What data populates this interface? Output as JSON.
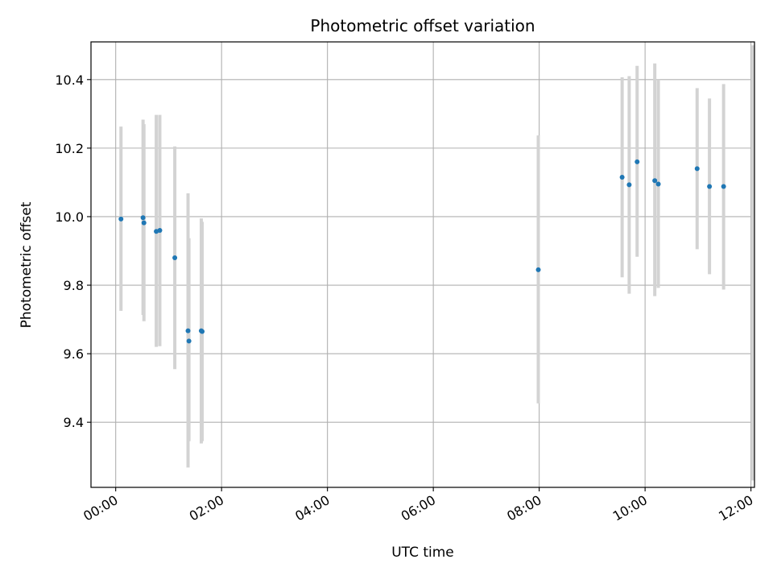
{
  "chart_data": {
    "type": "scatter",
    "title": "Photometric offset variation",
    "xlabel": "UTC time",
    "ylabel": "Photometric offset",
    "x_ticks": [
      "00:00",
      "02:00",
      "04:00",
      "06:00",
      "08:00",
      "10:00",
      "12:00"
    ],
    "y_ticks": [
      9.4,
      9.6,
      9.8,
      10.0,
      10.2,
      10.4
    ],
    "xlim": [
      "23:32",
      "12:04"
    ],
    "ylim": [
      9.21,
      10.51
    ],
    "grid": true,
    "errorbar_color": "#d3d3d3",
    "point_color": "#1f77b4",
    "points": [
      {
        "x": "00:06",
        "y": 9.993,
        "ylo": 9.725,
        "yhi": 10.263
      },
      {
        "x": "00:31",
        "y": 9.997,
        "ylo": 9.713,
        "yhi": 10.283
      },
      {
        "x": "00:32",
        "y": 9.982,
        "ylo": 9.695,
        "yhi": 10.27
      },
      {
        "x": "00:46",
        "y": 9.957,
        "ylo": 9.62,
        "yhi": 10.297
      },
      {
        "x": "00:50",
        "y": 9.96,
        "ylo": 9.622,
        "yhi": 10.297
      },
      {
        "x": "01:07",
        "y": 9.88,
        "ylo": 9.555,
        "yhi": 10.205
      },
      {
        "x": "01:22",
        "y": 9.667,
        "ylo": 9.268,
        "yhi": 10.068
      },
      {
        "x": "01:23",
        "y": 9.637,
        "ylo": 9.345,
        "yhi": 9.937
      },
      {
        "x": "01:37",
        "y": 9.667,
        "ylo": 9.338,
        "yhi": 9.995
      },
      {
        "x": "01:38",
        "y": 9.665,
        "ylo": 9.345,
        "yhi": 9.985
      },
      {
        "x": "07:59",
        "y": 9.845,
        "ylo": 9.455,
        "yhi": 10.237
      },
      {
        "x": "09:34",
        "y": 10.115,
        "ylo": 9.823,
        "yhi": 10.407
      },
      {
        "x": "09:42",
        "y": 10.093,
        "ylo": 9.775,
        "yhi": 10.41
      },
      {
        "x": "09:51",
        "y": 10.16,
        "ylo": 9.883,
        "yhi": 10.44
      },
      {
        "x": "10:11",
        "y": 10.105,
        "ylo": 9.768,
        "yhi": 10.447
      },
      {
        "x": "10:15",
        "y": 10.095,
        "ylo": 9.792,
        "yhi": 10.4
      },
      {
        "x": "10:59",
        "y": 10.14,
        "ylo": 9.905,
        "yhi": 10.375
      },
      {
        "x": "11:13",
        "y": 10.088,
        "ylo": 9.832,
        "yhi": 10.345
      },
      {
        "x": "11:29",
        "y": 10.088,
        "ylo": 9.787,
        "yhi": 10.387
      },
      {
        "x": "12:02",
        "y": 9.9,
        "ylo": 9.23,
        "yhi": 10.5,
        "marker": false
      }
    ]
  }
}
